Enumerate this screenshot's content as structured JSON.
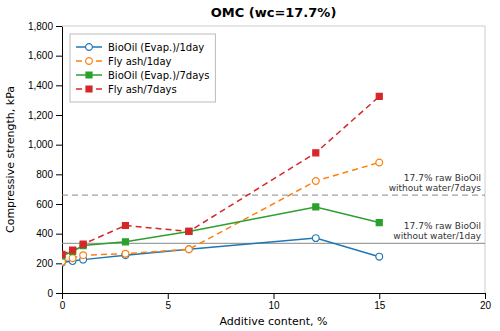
{
  "chart_data": {
    "type": "line",
    "title": "OMC (wc=17.7%)",
    "xlabel": "Additive content, %",
    "ylabel": "Compressive strength, kPa",
    "x": [
      0,
      0.5,
      1,
      3,
      6,
      12,
      15
    ],
    "series": [
      {
        "name": "BioOil (Evap.)/1day",
        "marker": "circle",
        "line_style": "solid",
        "values": [
          205,
          215,
          225,
          255,
          295,
          370,
          245
        ]
      },
      {
        "name": "Fly ash/1day",
        "marker": "circle",
        "line_style": "dashed",
        "values": [
          210,
          235,
          255,
          265,
          295,
          755,
          880
        ]
      },
      {
        "name": "BioOil (Evap.)/7days",
        "marker": "square",
        "line_style": "solid",
        "values": [
          250,
          280,
          320,
          345,
          415,
          580,
          475
        ]
      },
      {
        "name": "Fly ash/7days",
        "marker": "square",
        "line_style": "dashed",
        "values": [
          260,
          290,
          330,
          455,
          415,
          945,
          1325
        ]
      }
    ],
    "reference_lines": [
      {
        "y": 660,
        "label": "17.7% raw BioOil\nwithout water/7days",
        "line_style": "dashed"
      },
      {
        "y": 335,
        "label": "17.7% raw BioOil\nwithout water/1day",
        "line_style": "solid"
      }
    ],
    "xlim": [
      0,
      20
    ],
    "xticks": [
      0,
      5,
      10,
      15,
      20
    ],
    "ylim": [
      0,
      1800
    ],
    "yticks": [
      0,
      200,
      400,
      600,
      800,
      {
        "value": 1000,
        "label": "1,000"
      },
      {
        "value": 1200,
        "label": "1,200"
      },
      {
        "value": 1400,
        "label": "1,400"
      },
      {
        "value": 1600,
        "label": "1,600"
      },
      {
        "value": 1800,
        "label": "1,800"
      }
    ],
    "legend": "upper left"
  }
}
